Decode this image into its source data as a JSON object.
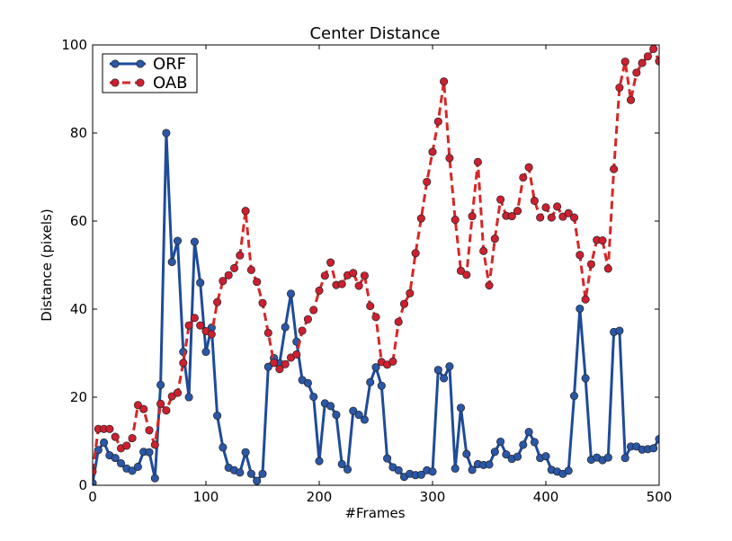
{
  "chart_data": {
    "type": "line",
    "title": "Center Distance",
    "xlabel": "#Frames",
    "ylabel": "Distance (pixels)",
    "xlim": [
      0,
      500
    ],
    "ylim": [
      0,
      100
    ],
    "xticks": [
      0,
      100,
      200,
      300,
      400,
      500
    ],
    "yticks": [
      0,
      20,
      40,
      60,
      80,
      100
    ],
    "grid": false,
    "legend_position": "top-left",
    "series": [
      {
        "name": "ORF",
        "color": "#1f4b99",
        "marker_color": "#2b57a7",
        "linestyle": "solid",
        "marker": "circle",
        "x": [
          0,
          5,
          10,
          15,
          20,
          25,
          30,
          35,
          40,
          45,
          50,
          55,
          60,
          65,
          70,
          75,
          80,
          85,
          90,
          95,
          100,
          105,
          110,
          115,
          120,
          125,
          130,
          135,
          140,
          145,
          150,
          155,
          160,
          165,
          170,
          175,
          180,
          185,
          190,
          195,
          200,
          205,
          210,
          215,
          220,
          225,
          230,
          235,
          240,
          245,
          250,
          255,
          260,
          265,
          270,
          275,
          280,
          285,
          290,
          295,
          300,
          305,
          310,
          315,
          320,
          325,
          330,
          335,
          340,
          345,
          350,
          355,
          360,
          365,
          370,
          375,
          380,
          385,
          390,
          395,
          400,
          405,
          410,
          415,
          420,
          425,
          430,
          435,
          440,
          445,
          450,
          455,
          460,
          465,
          470,
          475,
          480,
          485,
          490,
          495,
          500
        ],
        "y": [
          0.5,
          8,
          9.7,
          6.8,
          6.2,
          5,
          3.8,
          3.3,
          4.2,
          7.6,
          7.5,
          1.6,
          22.8,
          80,
          50.7,
          55.5,
          30.3,
          20,
          55.3,
          46,
          30.3,
          35.8,
          15.8,
          8.6,
          4,
          3.4,
          2.9,
          7.5,
          2.6,
          1,
          2.6,
          26.9,
          28.9,
          27.7,
          35.9,
          43.5,
          32.6,
          23.9,
          23.2,
          20.1,
          5.5,
          18.6,
          18,
          16,
          4.8,
          3.6,
          16.9,
          16,
          14.9,
          23.4,
          26.8,
          22.6,
          6.1,
          4.1,
          3.4,
          1.9,
          2.6,
          2.3,
          2.4,
          3.4,
          3.1,
          26.2,
          24.3,
          27,
          3.8,
          17.6,
          7.1,
          3.5,
          4.8,
          4.6,
          4.7,
          7.6,
          9.9,
          7,
          6,
          6.5,
          9.2,
          12.1,
          9.8,
          6.2,
          6.6,
          3.5,
          3.1,
          2.6,
          3.3,
          20.3,
          40.1,
          24.3,
          5.8,
          6.3,
          5.7,
          6.3,
          34.8,
          35.1,
          6.2,
          8.8,
          8.8,
          8.1,
          8.2,
          8.4,
          10.5
        ]
      },
      {
        "name": "OAB",
        "color": "#d62728",
        "marker_color": "#cc2030",
        "linestyle": "dashed",
        "marker": "circle",
        "x": [
          0,
          5,
          10,
          15,
          20,
          25,
          30,
          35,
          40,
          45,
          50,
          55,
          60,
          65,
          70,
          75,
          80,
          85,
          90,
          95,
          100,
          105,
          110,
          115,
          120,
          125,
          130,
          135,
          140,
          145,
          150,
          155,
          160,
          165,
          170,
          175,
          180,
          185,
          190,
          195,
          200,
          205,
          210,
          215,
          220,
          225,
          230,
          235,
          240,
          245,
          250,
          255,
          260,
          265,
          270,
          275,
          280,
          285,
          290,
          295,
          300,
          305,
          310,
          315,
          320,
          325,
          330,
          335,
          340,
          345,
          350,
          355,
          360,
          365,
          370,
          375,
          380,
          385,
          390,
          395,
          400,
          405,
          410,
          415,
          420,
          425,
          430,
          435,
          440,
          445,
          450,
          455,
          460,
          465,
          470,
          475,
          480,
          485,
          490,
          495,
          500
        ],
        "y": [
          3.1,
          12.8,
          12.8,
          12.8,
          11,
          8.4,
          9,
          10.7,
          18.2,
          17.3,
          12.5,
          9.2,
          18.5,
          17,
          20.2,
          21,
          27.8,
          36.3,
          38,
          36.3,
          35,
          34.3,
          41.6,
          46.4,
          47.7,
          49.3,
          52.2,
          62.3,
          48.9,
          46.2,
          41.4,
          34.6,
          27.8,
          26.4,
          27.5,
          29,
          29.7,
          35.1,
          37.7,
          39.8,
          44.2,
          47.6,
          50.6,
          45.5,
          45.7,
          47.7,
          48.2,
          45.3,
          47.6,
          40.7,
          38.2,
          28,
          27.4,
          28.1,
          37.1,
          41.2,
          43.6,
          52.7,
          60.6,
          68.9,
          75.7,
          82.6,
          91.7,
          74.3,
          60.3,
          48.7,
          47.8,
          61.1,
          73.4,
          53.2,
          45.4,
          56,
          64.9,
          61.2,
          61.1,
          62.3,
          69.9,
          72.2,
          64.6,
          60.8,
          63.1,
          60.8,
          63.3,
          61,
          61.8,
          60.8,
          52.3,
          42.2,
          50.2,
          55.7,
          55.6,
          49.2,
          71.8,
          90.3,
          96.2,
          87.5,
          93.7,
          95.9,
          97.4,
          99.1,
          96.3
        ]
      }
    ]
  }
}
